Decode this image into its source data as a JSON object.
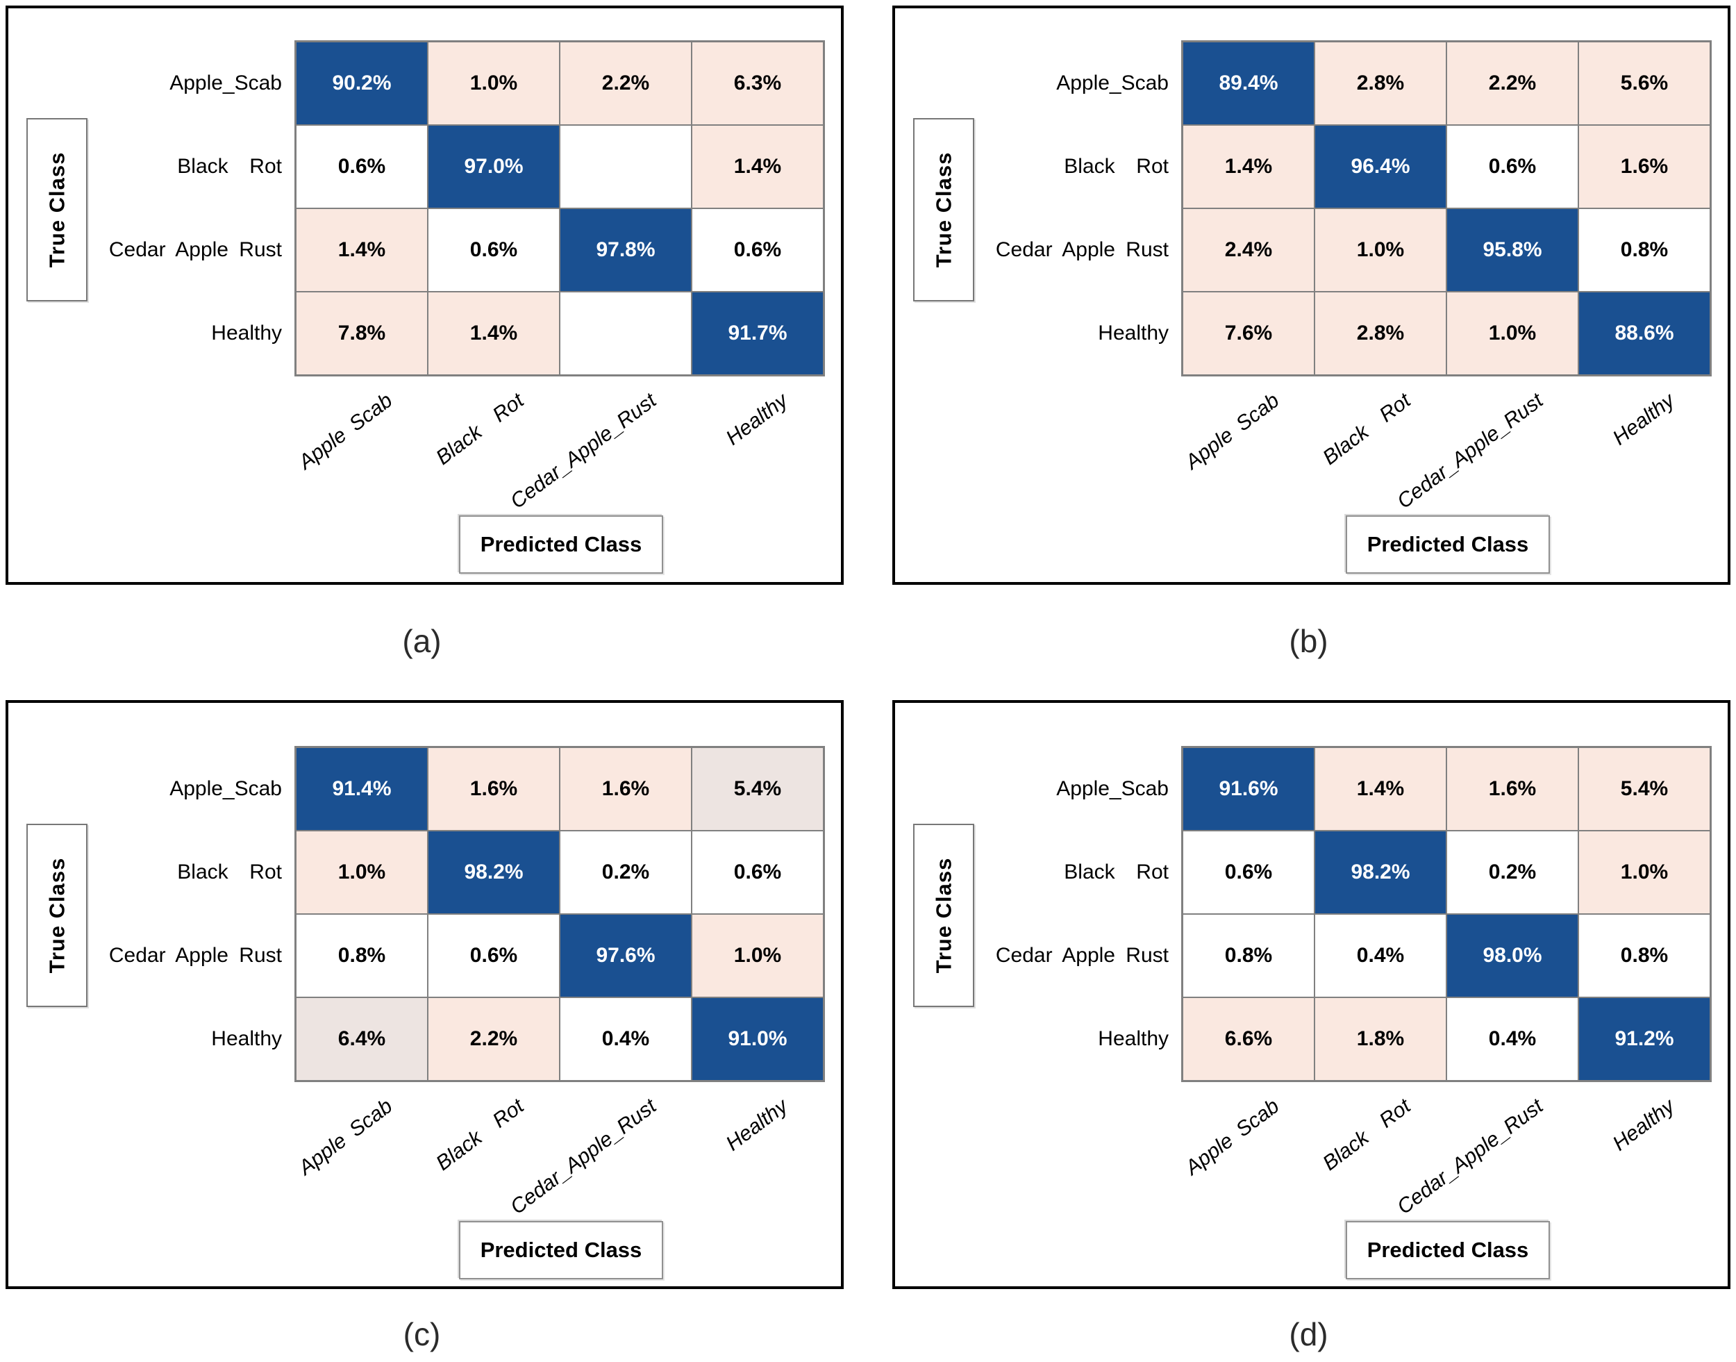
{
  "axis": {
    "y_title": "True Class",
    "x_title": "Predicted Class"
  },
  "colors": {
    "diagonal_blue": "#1A5091",
    "off_diagonal_pink": "#FAE8E0",
    "off_diagonal_gray_pink": "#EDE4E1",
    "empty_cell_white": "#FFFFFF",
    "text_on_blue": "#FFFFFF",
    "grid_border": "#808080",
    "panel_border": "#000000"
  },
  "panels": [
    {
      "id": "a",
      "caption": "(a)",
      "y_labels": [
        "Apple_Scab",
        "Black  Rot",
        "Cedar Apple Rust",
        "Healthy"
      ],
      "x_labels": [
        "Apple Scab",
        "Black  Rot",
        "Cedar_Apple_Rust",
        "Healthy"
      ],
      "rows": [
        [
          {
            "v": "90.2%",
            "bg": "blue"
          },
          {
            "v": "1.0%",
            "bg": "pink"
          },
          {
            "v": "2.2%",
            "bg": "pink"
          },
          {
            "v": "6.3%",
            "bg": "pink"
          }
        ],
        [
          {
            "v": "0.6%",
            "bg": "white"
          },
          {
            "v": "97.0%",
            "bg": "blue"
          },
          {
            "v": "",
            "bg": "white"
          },
          {
            "v": "1.4%",
            "bg": "pink"
          }
        ],
        [
          {
            "v": "1.4%",
            "bg": "pink"
          },
          {
            "v": "0.6%",
            "bg": "white"
          },
          {
            "v": "97.8%",
            "bg": "blue"
          },
          {
            "v": "0.6%",
            "bg": "white"
          }
        ],
        [
          {
            "v": "7.8%",
            "bg": "pink"
          },
          {
            "v": "1.4%",
            "bg": "pink"
          },
          {
            "v": "",
            "bg": "white"
          },
          {
            "v": "91.7%",
            "bg": "blue"
          }
        ]
      ]
    },
    {
      "id": "b",
      "caption": "(b)",
      "y_labels": [
        "Apple_Scab",
        "Black  Rot",
        "Cedar Apple Rust",
        "Healthy"
      ],
      "x_labels": [
        "Apple Scab",
        "Black  Rot",
        "Cedar_Apple_Rust",
        "Healthy"
      ],
      "rows": [
        [
          {
            "v": "89.4%",
            "bg": "blue"
          },
          {
            "v": "2.8%",
            "bg": "pink"
          },
          {
            "v": "2.2%",
            "bg": "pink"
          },
          {
            "v": "5.6%",
            "bg": "pink"
          }
        ],
        [
          {
            "v": "1.4%",
            "bg": "pink"
          },
          {
            "v": "96.4%",
            "bg": "blue"
          },
          {
            "v": "0.6%",
            "bg": "white"
          },
          {
            "v": "1.6%",
            "bg": "pink"
          }
        ],
        [
          {
            "v": "2.4%",
            "bg": "pink"
          },
          {
            "v": "1.0%",
            "bg": "pink"
          },
          {
            "v": "95.8%",
            "bg": "blue"
          },
          {
            "v": "0.8%",
            "bg": "white"
          }
        ],
        [
          {
            "v": "7.6%",
            "bg": "pink"
          },
          {
            "v": "2.8%",
            "bg": "pink"
          },
          {
            "v": "1.0%",
            "bg": "pink"
          },
          {
            "v": "88.6%",
            "bg": "blue"
          }
        ]
      ]
    },
    {
      "id": "c",
      "caption": "(c)",
      "y_labels": [
        "Apple_Scab",
        "Black  Rot",
        "Cedar Apple Rust",
        "Healthy"
      ],
      "x_labels": [
        "Apple Scab",
        "Black  Rot",
        "Cedar_Apple_Rust",
        "Healthy"
      ],
      "rows": [
        [
          {
            "v": "91.4%",
            "bg": "blue"
          },
          {
            "v": "1.6%",
            "bg": "pink"
          },
          {
            "v": "1.6%",
            "bg": "pink"
          },
          {
            "v": "5.4%",
            "bg": "pink2"
          }
        ],
        [
          {
            "v": "1.0%",
            "bg": "pink"
          },
          {
            "v": "98.2%",
            "bg": "blue"
          },
          {
            "v": "0.2%",
            "bg": "white"
          },
          {
            "v": "0.6%",
            "bg": "white"
          }
        ],
        [
          {
            "v": "0.8%",
            "bg": "white"
          },
          {
            "v": "0.6%",
            "bg": "white"
          },
          {
            "v": "97.6%",
            "bg": "blue"
          },
          {
            "v": "1.0%",
            "bg": "pink"
          }
        ],
        [
          {
            "v": "6.4%",
            "bg": "pink2"
          },
          {
            "v": "2.2%",
            "bg": "pink"
          },
          {
            "v": "0.4%",
            "bg": "white"
          },
          {
            "v": "91.0%",
            "bg": "blue"
          }
        ]
      ]
    },
    {
      "id": "d",
      "caption": "(d)",
      "y_labels": [
        "Apple_Scab",
        "Black  Rot",
        "Cedar Apple Rust",
        "Healthy"
      ],
      "x_labels": [
        "Apple Scab",
        "Black  Rot",
        "Cedar_Apple_Rust",
        "Healthy"
      ],
      "rows": [
        [
          {
            "v": "91.6%",
            "bg": "blue"
          },
          {
            "v": "1.4%",
            "bg": "pink"
          },
          {
            "v": "1.6%",
            "bg": "pink"
          },
          {
            "v": "5.4%",
            "bg": "pink"
          }
        ],
        [
          {
            "v": "0.6%",
            "bg": "white"
          },
          {
            "v": "98.2%",
            "bg": "blue"
          },
          {
            "v": "0.2%",
            "bg": "white"
          },
          {
            "v": "1.0%",
            "bg": "pink"
          }
        ],
        [
          {
            "v": "0.8%",
            "bg": "white"
          },
          {
            "v": "0.4%",
            "bg": "white"
          },
          {
            "v": "98.0%",
            "bg": "blue"
          },
          {
            "v": "0.8%",
            "bg": "white"
          }
        ],
        [
          {
            "v": "6.6%",
            "bg": "pink"
          },
          {
            "v": "1.8%",
            "bg": "pink"
          },
          {
            "v": "0.4%",
            "bg": "white"
          },
          {
            "v": "91.2%",
            "bg": "blue"
          }
        ]
      ]
    }
  ],
  "chart_data": [
    {
      "type": "heatmap",
      "title": "(a)",
      "xlabel": "Predicted Class",
      "ylabel": "True Class",
      "x_categories": [
        "Apple Scab",
        "Black Rot",
        "Cedar_Apple_Rust",
        "Healthy"
      ],
      "y_categories": [
        "Apple_Scab",
        "Black Rot",
        "Cedar Apple Rust",
        "Healthy"
      ],
      "values_percent": [
        [
          90.2,
          1.0,
          2.2,
          6.3
        ],
        [
          0.6,
          97.0,
          null,
          1.4
        ],
        [
          1.4,
          0.6,
          97.8,
          0.6
        ],
        [
          7.8,
          1.4,
          null,
          91.7
        ]
      ]
    },
    {
      "type": "heatmap",
      "title": "(b)",
      "xlabel": "Predicted Class",
      "ylabel": "True Class",
      "x_categories": [
        "Apple Scab",
        "Black Rot",
        "Cedar_Apple_Rust",
        "Healthy"
      ],
      "y_categories": [
        "Apple_Scab",
        "Black Rot",
        "Cedar Apple Rust",
        "Healthy"
      ],
      "values_percent": [
        [
          89.4,
          2.8,
          2.2,
          5.6
        ],
        [
          1.4,
          96.4,
          0.6,
          1.6
        ],
        [
          2.4,
          1.0,
          95.8,
          0.8
        ],
        [
          7.6,
          2.8,
          1.0,
          88.6
        ]
      ]
    },
    {
      "type": "heatmap",
      "title": "(c)",
      "xlabel": "Predicted Class",
      "ylabel": "True Class",
      "x_categories": [
        "Apple Scab",
        "Black Rot",
        "Cedar_Apple_Rust",
        "Healthy"
      ],
      "y_categories": [
        "Apple_Scab",
        "Black Rot",
        "Cedar Apple Rust",
        "Healthy"
      ],
      "values_percent": [
        [
          91.4,
          1.6,
          1.6,
          5.4
        ],
        [
          1.0,
          98.2,
          0.2,
          0.6
        ],
        [
          0.8,
          0.6,
          97.6,
          1.0
        ],
        [
          6.4,
          2.2,
          0.4,
          91.0
        ]
      ]
    },
    {
      "type": "heatmap",
      "title": "(d)",
      "xlabel": "Predicted Class",
      "ylabel": "True Class",
      "x_categories": [
        "Apple Scab",
        "Black Rot",
        "Cedar_Apple_Rust",
        "Healthy"
      ],
      "y_categories": [
        "Apple_Scab",
        "Black Rot",
        "Cedar Apple Rust",
        "Healthy"
      ],
      "values_percent": [
        [
          91.6,
          1.4,
          1.6,
          5.4
        ],
        [
          0.6,
          98.2,
          0.2,
          1.0
        ],
        [
          0.8,
          0.4,
          98.0,
          0.8
        ],
        [
          6.6,
          1.8,
          0.4,
          91.2
        ]
      ]
    }
  ]
}
